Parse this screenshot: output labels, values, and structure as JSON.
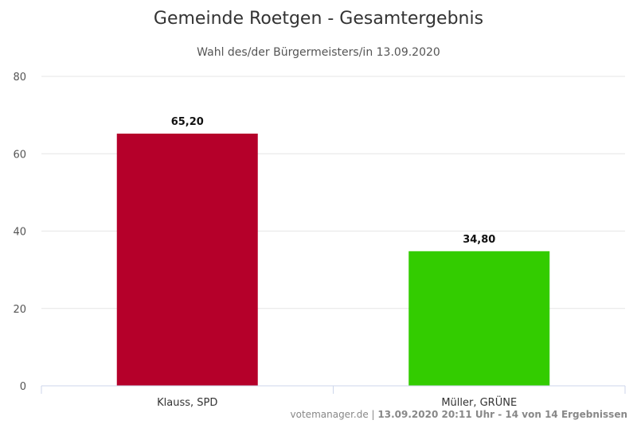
{
  "chart_data": {
    "type": "bar",
    "title": "Gemeinde Roetgen - Gesamtergebnis",
    "subtitle": "Wahl des/der Bürgermeisters/in 13.09.2020",
    "categories": [
      "Klauss, SPD",
      "Müller, GRÜNE"
    ],
    "values": [
      65.2,
      34.8
    ],
    "value_labels": [
      "65,20",
      "34,80"
    ],
    "colors": [
      "#b5002a",
      "#33cc00"
    ],
    "ylim": [
      0,
      80
    ],
    "yticks": [
      0,
      20,
      40,
      60,
      80
    ],
    "xlabel": "",
    "ylabel": "",
    "grid": true,
    "legend": false
  },
  "credits": {
    "source": "votemanager.de",
    "separator": " | ",
    "details": "13.09.2020 20:11 Uhr - 14 von 14 Ergebnissen"
  }
}
